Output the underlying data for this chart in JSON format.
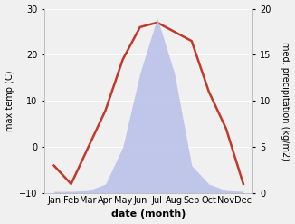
{
  "months": [
    "Jan",
    "Feb",
    "Mar",
    "Apr",
    "May",
    "Jun",
    "Jul",
    "Aug",
    "Sep",
    "Oct",
    "Nov",
    "Dec"
  ],
  "temp": [
    -4,
    -8,
    0,
    8,
    19,
    26,
    27,
    25,
    23,
    12,
    4,
    -8
  ],
  "precip": [
    0.2,
    0.2,
    0.3,
    1.0,
    5.0,
    13.0,
    19.0,
    13.0,
    3.0,
    1.0,
    0.3,
    0.2
  ],
  "temp_color": "#c0392b",
  "precip_fill_color": "#b8bfe8",
  "precip_fill_alpha": 0.85,
  "xlabel": "date (month)",
  "ylabel_left": "max temp (C)",
  "ylabel_right": "med. precipitation (kg/m2)",
  "ylim_left": [
    -10,
    30
  ],
  "ylim_right": [
    0,
    20
  ],
  "bg_color": "#f0f0f0",
  "line_width": 1.8,
  "xlabel_fontsize": 8,
  "ylabel_fontsize": 7,
  "tick_fontsize": 7
}
